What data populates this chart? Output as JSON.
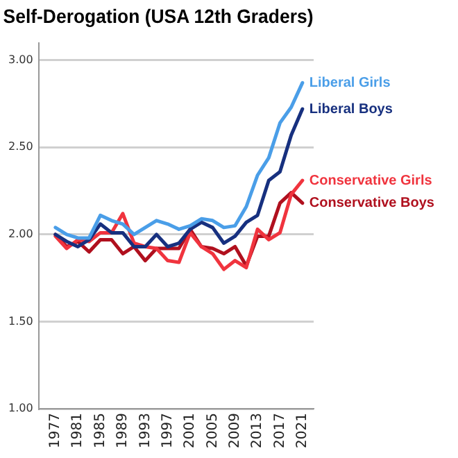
{
  "chart_data": {
    "type": "line",
    "title": "Self-Derogation (USA 12th Graders)",
    "x": [
      1977,
      1979,
      1981,
      1983,
      1985,
      1987,
      1989,
      1991,
      1993,
      1995,
      1997,
      1999,
      2001,
      2003,
      2005,
      2007,
      2009,
      2011,
      2013,
      2015,
      2017,
      2019,
      2021
    ],
    "series": [
      {
        "name": "Liberal Girls",
        "color": "#4a9ee8",
        "values": [
          2.04,
          2.0,
          1.98,
          1.98,
          2.11,
          2.08,
          2.06,
          2.0,
          2.04,
          2.08,
          2.06,
          2.03,
          2.05,
          2.09,
          2.08,
          2.04,
          2.05,
          2.16,
          2.34,
          2.44,
          2.64,
          2.73,
          2.87
        ]
      },
      {
        "name": "Liberal Boys",
        "color": "#17307f",
        "values": [
          2.0,
          1.96,
          1.93,
          1.97,
          2.06,
          2.01,
          2.01,
          1.93,
          1.93,
          2.0,
          1.93,
          1.95,
          2.03,
          2.07,
          2.04,
          1.95,
          1.99,
          2.07,
          2.11,
          2.31,
          2.36,
          2.57,
          2.72
        ]
      },
      {
        "name": "Conservative Girls",
        "color": "#f0343e",
        "values": [
          1.99,
          1.92,
          1.97,
          1.96,
          2.01,
          2.01,
          2.12,
          1.95,
          1.93,
          1.92,
          1.85,
          1.84,
          2.01,
          1.93,
          1.89,
          1.8,
          1.85,
          1.81,
          2.03,
          1.97,
          2.01,
          2.23,
          2.31
        ]
      },
      {
        "name": "Conservative Boys",
        "color": "#b0101e",
        "values": [
          2.0,
          1.93,
          1.96,
          1.9,
          1.97,
          1.97,
          1.89,
          1.93,
          1.85,
          1.92,
          1.92,
          1.92,
          2.03,
          1.93,
          1.92,
          1.89,
          1.93,
          1.82,
          1.99,
          1.99,
          2.18,
          2.24,
          2.18
        ]
      }
    ],
    "xlim": [
      1974,
      2023
    ],
    "xticks": [
      1977,
      1981,
      1985,
      1989,
      1993,
      1997,
      2001,
      2005,
      2009,
      2013,
      2017,
      2021
    ],
    "ylim": [
      1,
      3.1
    ],
    "yticks": [
      {
        "value": 1,
        "label": "1.00"
      },
      {
        "value": 1.5,
        "label": "1.50"
      },
      {
        "value": 2,
        "label": "2.00"
      },
      {
        "value": 2.5,
        "label": "2.50"
      },
      {
        "value": 3,
        "label": "3.00"
      }
    ],
    "grid": "y",
    "legend": false,
    "marker": "none",
    "line_style": "solid"
  }
}
